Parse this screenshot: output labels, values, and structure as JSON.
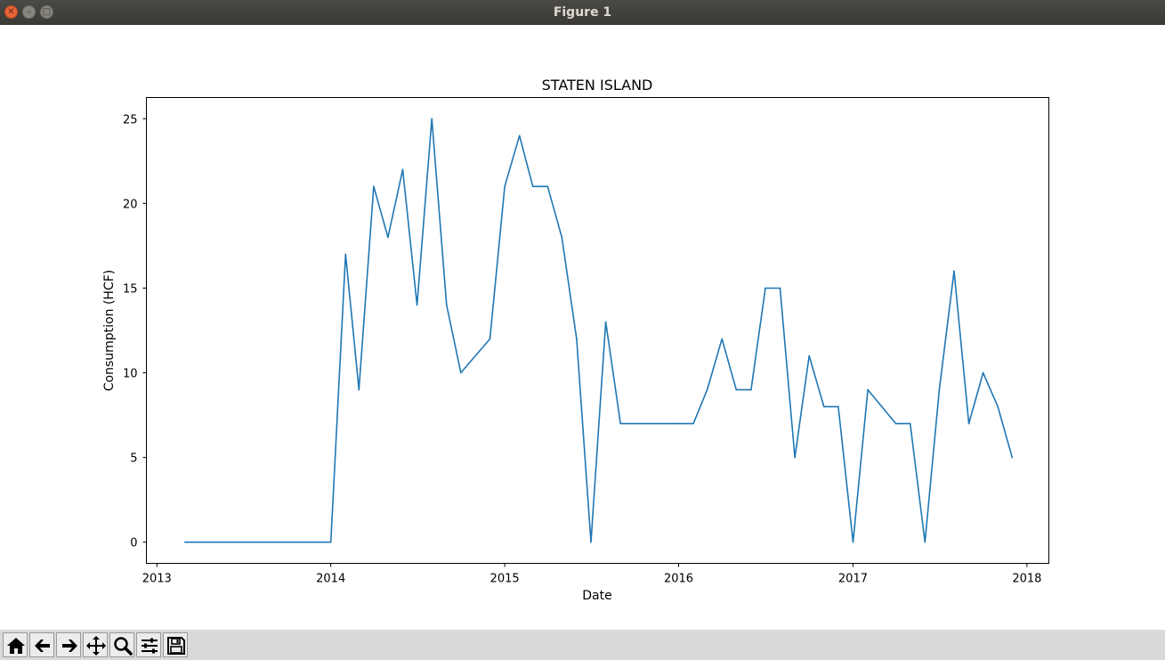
{
  "window": {
    "title": "Figure 1"
  },
  "window_buttons": [
    "close-icon",
    "minimize-icon",
    "maximize-icon"
  ],
  "toolbar": {
    "buttons": [
      {
        "name": "home-icon"
      },
      {
        "name": "back-arrow-icon"
      },
      {
        "name": "forward-arrow-icon"
      },
      {
        "name": "pan-icon"
      },
      {
        "name": "zoom-icon"
      },
      {
        "name": "configure-subplots-icon"
      },
      {
        "name": "save-icon"
      }
    ]
  },
  "chart_data": {
    "type": "line",
    "title": "STATEN ISLAND",
    "xlabel": "Date",
    "ylabel": "Consumption (HCF)",
    "xlim": [
      "2012-12-10",
      "2018-02-16"
    ],
    "ylim": [
      -1.25,
      26.25
    ],
    "xticks": [
      {
        "label": "2013",
        "value": "2013-01-01"
      },
      {
        "label": "2014",
        "value": "2014-01-01"
      },
      {
        "label": "2015",
        "value": "2015-01-01"
      },
      {
        "label": "2016",
        "value": "2016-01-01"
      },
      {
        "label": "2017",
        "value": "2017-01-01"
      },
      {
        "label": "2018",
        "value": "2018-01-01"
      }
    ],
    "yticks": [
      0,
      5,
      10,
      15,
      20,
      25
    ],
    "grid": false,
    "line_color": "#1f77b4",
    "series": [
      {
        "x": [
          "2013-03-01",
          "2014-01-01",
          "2014-02-01",
          "2014-03-01",
          "2014-04-01",
          "2014-05-01",
          "2014-06-01",
          "2014-07-01",
          "2014-08-01",
          "2014-09-01",
          "2014-10-01",
          "2014-12-01",
          "2015-01-01",
          "2015-02-01",
          "2015-03-01",
          "2015-04-01",
          "2015-05-01",
          "2015-06-01",
          "2015-07-01",
          "2015-08-01",
          "2015-09-01",
          "2016-01-01",
          "2016-02-01",
          "2016-03-01",
          "2016-04-01",
          "2016-05-01",
          "2016-06-01",
          "2016-07-01",
          "2016-08-01",
          "2016-09-01",
          "2016-10-01",
          "2016-11-01",
          "2016-12-01",
          "2017-01-01",
          "2017-02-01",
          "2017-04-01",
          "2017-05-01",
          "2017-06-01",
          "2017-07-01",
          "2017-08-01",
          "2017-09-01",
          "2017-10-01",
          "2017-11-01",
          "2017-12-01"
        ],
        "y": [
          0,
          0,
          17,
          9,
          21,
          18,
          22,
          14,
          25,
          14,
          10,
          12,
          21,
          24,
          21,
          21,
          18,
          12,
          0,
          13,
          7,
          7,
          7,
          9,
          12,
          9,
          9,
          15,
          15,
          5,
          11,
          8,
          8,
          0,
          9,
          7,
          7,
          0,
          9,
          16,
          7,
          10,
          8,
          5
        ]
      }
    ]
  }
}
